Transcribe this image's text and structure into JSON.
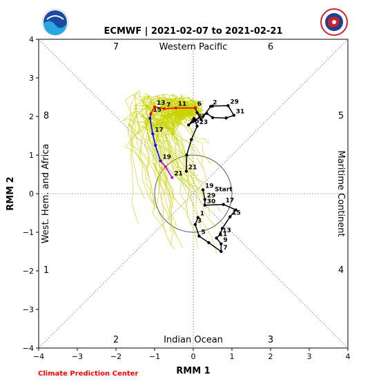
{
  "chart_data": {
    "type": "line",
    "title": "ECMWF | 2021-02-07 to 2021-02-21",
    "xlabel": "RMM 1",
    "ylabel": "RMM 2",
    "xlim": [
      -4,
      4
    ],
    "ylim": [
      -4,
      4
    ],
    "x_ticks": [
      "−4",
      "−3",
      "−2",
      "−1",
      "0",
      "1",
      "2",
      "3",
      "4"
    ],
    "y_ticks": [
      "−4",
      "−3",
      "−2",
      "−1",
      "0",
      "1",
      "2",
      "3",
      "4"
    ],
    "phase_numbers": [
      "1",
      "2",
      "3",
      "4",
      "5",
      "6",
      "7",
      "8"
    ],
    "region_labels": {
      "top": "Western Pacific",
      "bottom": "Indian Ocean",
      "left": "West. Hem. and Africa",
      "right": "Maritime Continent"
    },
    "unit_circle": true,
    "credit": "Climate Prediction Center",
    "observed": {
      "color": "#000000",
      "points": [
        {
          "x": -0.18,
          "y": 0.58,
          "label": "21"
        },
        {
          "x": -0.17,
          "y": 1.0,
          "label": ""
        },
        {
          "x": -0.05,
          "y": 1.4,
          "label": ""
        },
        {
          "x": 0.1,
          "y": 1.75,
          "label": "23"
        },
        {
          "x": 0.02,
          "y": 1.95,
          "label": ""
        },
        {
          "x": -0.12,
          "y": 1.78,
          "label": "25"
        },
        {
          "x": 0.05,
          "y": 1.9,
          "label": "27"
        },
        {
          "x": 0.35,
          "y": 2.08,
          "label": ""
        },
        {
          "x": 0.5,
          "y": 1.97,
          "label": ""
        },
        {
          "x": 0.85,
          "y": 1.96,
          "label": ""
        },
        {
          "x": 1.05,
          "y": 2.03,
          "label": "31"
        },
        {
          "x": 0.9,
          "y": 2.28,
          "label": "29"
        },
        {
          "x": 0.5,
          "y": 2.27,
          "label": ""
        },
        {
          "x": 0.45,
          "y": 2.26,
          "label": "2"
        },
        {
          "x": 0.2,
          "y": 1.92,
          "label": ""
        },
        {
          "x": 0.1,
          "y": 2.1,
          "label": ""
        },
        {
          "x": 0.05,
          "y": 2.22,
          "label": "6"
        }
      ]
    },
    "forecast_mean": {
      "color": "#000000",
      "points": [
        {
          "x": 0.25,
          "y": 0.1,
          "label": "19"
        },
        {
          "x": 0.3,
          "y": -0.15,
          "label": "29"
        },
        {
          "x": 0.3,
          "y": -0.3,
          "label": "30"
        },
        {
          "x": 0.78,
          "y": -0.28,
          "label": "17"
        },
        {
          "x": 1.1,
          "y": -0.42,
          "label": ""
        },
        {
          "x": 0.95,
          "y": -0.6,
          "label": "15"
        },
        {
          "x": 0.75,
          "y": -0.9,
          "label": ""
        },
        {
          "x": 0.7,
          "y": -1.05,
          "label": "13"
        },
        {
          "x": 0.6,
          "y": -1.15,
          "label": "11"
        },
        {
          "x": 0.72,
          "y": -1.3,
          "label": "9"
        },
        {
          "x": 0.72,
          "y": -1.5,
          "label": "7"
        },
        {
          "x": 0.4,
          "y": -1.27,
          "label": ""
        },
        {
          "x": 0.15,
          "y": -1.1,
          "label": "5"
        },
        {
          "x": 0.05,
          "y": -0.8,
          "label": "3"
        },
        {
          "x": 0.12,
          "y": -0.62,
          "label": "1"
        }
      ],
      "start_label": "Start"
    },
    "ensemble_mean_path": {
      "colors": [
        "#cc00cc",
        "#0000ff",
        "#ff0000"
      ],
      "points": [
        {
          "x": -0.55,
          "y": 0.42,
          "label": "21"
        },
        {
          "x": -0.72,
          "y": 0.7,
          "label": ""
        },
        {
          "x": -0.85,
          "y": 0.85,
          "label": "19"
        },
        {
          "x": -0.98,
          "y": 1.25,
          "label": ""
        },
        {
          "x": -1.05,
          "y": 1.55,
          "label": "17"
        },
        {
          "x": -1.12,
          "y": 1.95,
          "label": ""
        },
        {
          "x": -1.1,
          "y": 2.07,
          "label": "15"
        },
        {
          "x": -1.0,
          "y": 2.25,
          "label": "13"
        },
        {
          "x": -0.75,
          "y": 2.2,
          "label": "7"
        },
        {
          "x": -0.45,
          "y": 2.22,
          "label": "11"
        },
        {
          "x": 0.05,
          "y": 2.22,
          "label": ""
        }
      ]
    },
    "ensemble_members": {
      "color": "#c8d400",
      "count": 50
    }
  }
}
